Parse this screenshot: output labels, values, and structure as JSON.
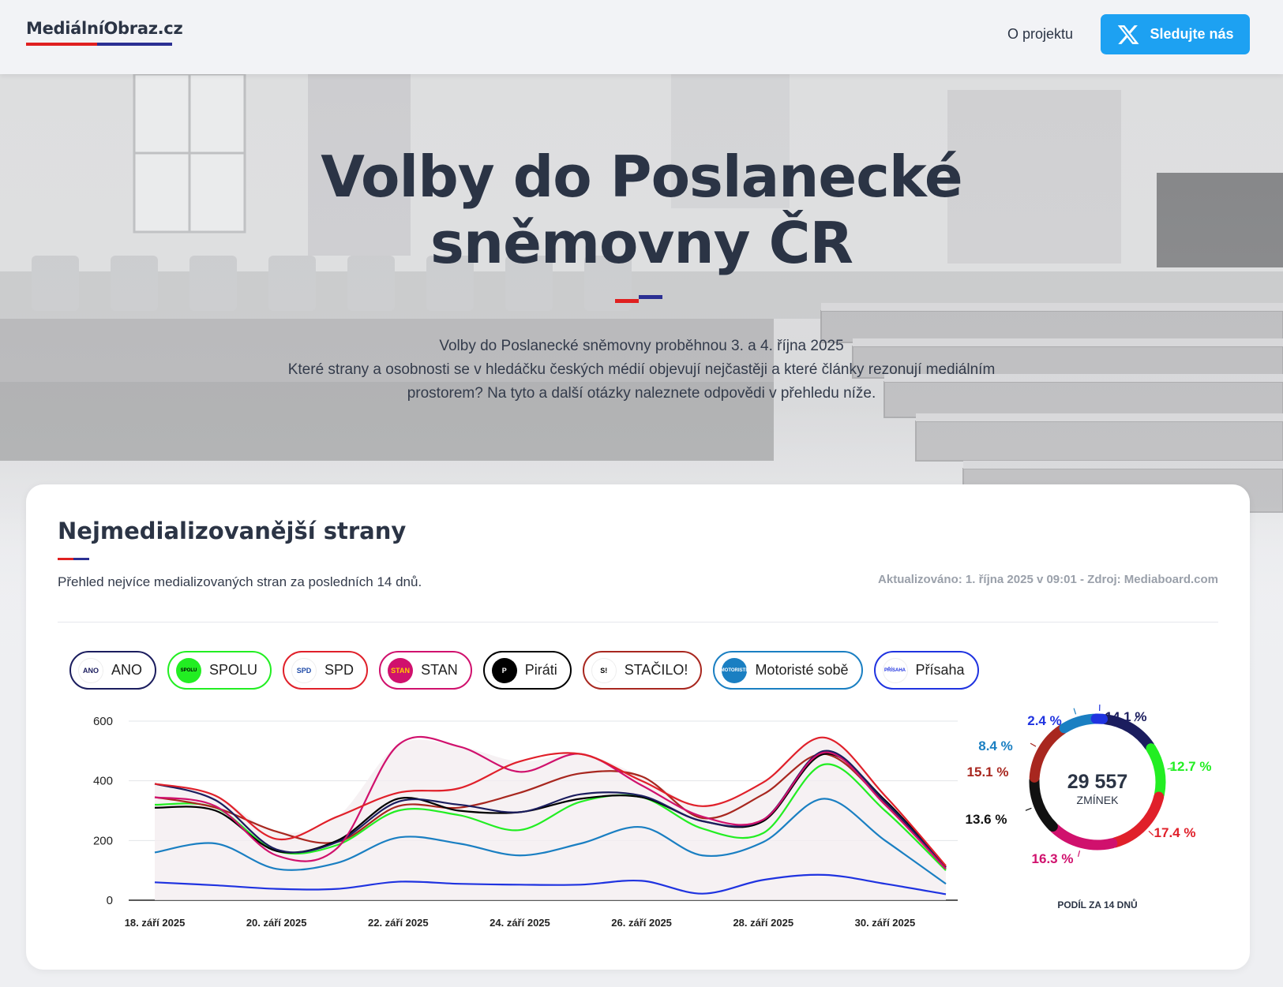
{
  "header": {
    "logo": "MediálníObraz.cz",
    "about_link": "O projektu",
    "follow_label": "Sledujte nás"
  },
  "hero": {
    "title_line1": "Volby do Poslanecké",
    "title_line2": "sněmovny ČR",
    "text_line1": "Volby do Poslanecké sněmovny proběhnou 3. a 4. října 2025",
    "text_line2": "Které strany a osobnosti se v hledáčku českých médií objevují nejčastěji a které články rezonují mediálním",
    "text_line3": "prostorem? Na tyto a další otázky naleznete odpovědi v přehledu níže."
  },
  "section": {
    "title": "Nejmedializovanější strany",
    "subtitle": "Přehled nejvíce medializovaných stran za posledních 14 dnů.",
    "meta": "Aktualizováno: 1. října 2025 v 09:01 - Zdroj: Mediaboard.com"
  },
  "parties": [
    {
      "name": "ANO",
      "color": "#1b1d5e",
      "logo_text": "ANO",
      "logo_bg": "#ffffff",
      "logo_fg": "#1b1d5e"
    },
    {
      "name": "SPOLU",
      "color": "#22ee22",
      "logo_text": "SPOLU",
      "logo_bg": "#22ee22",
      "logo_fg": "#000000"
    },
    {
      "name": "SPD",
      "color": "#e0202a",
      "logo_text": "SPD",
      "logo_bg": "#ffffff",
      "logo_fg": "#1f4ba8"
    },
    {
      "name": "STAN",
      "color": "#d0116d",
      "logo_text": "STAN",
      "logo_bg": "#d0116d",
      "logo_fg": "#ffcc00"
    },
    {
      "name": "Piráti",
      "color": "#000000",
      "logo_text": "P",
      "logo_bg": "#000000",
      "logo_fg": "#ffffff"
    },
    {
      "name": "STAČILO!",
      "color": "#a8271f",
      "logo_text": "S!",
      "logo_bg": "#ffffff",
      "logo_fg": "#000000"
    },
    {
      "name": "Motoristé sobě",
      "color": "#1a7fc2",
      "logo_text": "MOTORISTÉ",
      "logo_bg": "#1a7fc2",
      "logo_fg": "#ffffff"
    },
    {
      "name": "Přísaha",
      "color": "#1f33e0",
      "logo_text": "PŘÍSAHA",
      "logo_bg": "#ffffff",
      "logo_fg": "#1f33e0"
    }
  ],
  "chart_data": {
    "type": "line",
    "x": [
      "18. září 2025",
      "19. září 2025",
      "20. září 2025",
      "21. září 2025",
      "22. září 2025",
      "23. září 2025",
      "24. září 2025",
      "25. září 2025",
      "26. září 2025",
      "27. září 2025",
      "28. září 2025",
      "29. září 2025",
      "30. září 2025",
      "1. října 2025"
    ],
    "x_tick_labels": [
      "18. září 2025",
      "20. září 2025",
      "22. září 2025",
      "24. září 2025",
      "26. září 2025",
      "28. září 2025",
      "30. září 2025"
    ],
    "ylim": [
      0,
      600
    ],
    "y_ticks": [
      0,
      200,
      400,
      600
    ],
    "grid": true,
    "series": [
      {
        "name": "ANO",
        "color": "#1b1d5e",
        "values": [
          390,
          335,
          170,
          195,
          330,
          320,
          295,
          355,
          350,
          265,
          270,
          500,
          330,
          110
        ]
      },
      {
        "name": "SPOLU",
        "color": "#22ee22",
        "values": [
          320,
          310,
          165,
          185,
          300,
          285,
          235,
          330,
          345,
          240,
          225,
          455,
          300,
          100
        ]
      },
      {
        "name": "SPD",
        "color": "#e0202a",
        "values": [
          390,
          350,
          205,
          280,
          360,
          375,
          465,
          490,
          400,
          315,
          395,
          545,
          350,
          115
        ]
      },
      {
        "name": "STAN",
        "color": "#d0116d",
        "values": [
          345,
          315,
          150,
          175,
          520,
          515,
          430,
          490,
          385,
          280,
          270,
          495,
          320,
          105
        ]
      },
      {
        "name": "Piráti",
        "color": "#000000",
        "values": [
          310,
          300,
          165,
          200,
          340,
          300,
          295,
          340,
          345,
          265,
          265,
          490,
          335,
          110
        ]
      },
      {
        "name": "STAČILO!",
        "color": "#a8271f",
        "values": [
          345,
          310,
          230,
          195,
          315,
          310,
          360,
          425,
          415,
          275,
          355,
          490,
          325,
          105
        ]
      },
      {
        "name": "Motoristé sobě",
        "color": "#1a7fc2",
        "values": [
          160,
          190,
          105,
          125,
          210,
          190,
          150,
          190,
          245,
          150,
          195,
          340,
          200,
          55
        ]
      },
      {
        "name": "Přísaha",
        "color": "#1f33e0",
        "values": [
          60,
          50,
          38,
          38,
          62,
          55,
          52,
          52,
          65,
          22,
          68,
          85,
          55,
          20
        ]
      }
    ]
  },
  "donut": {
    "total": "29 557",
    "total_label": "ZMÍNEK",
    "caption": "PODÍL ZA 14 DNŮ",
    "slices": [
      {
        "party": "ANO",
        "pct": 14.1,
        "label": "14.1 %",
        "color": "#1b1d5e"
      },
      {
        "party": "SPOLU",
        "pct": 12.7,
        "label": "12.7 %",
        "color": "#22ee22"
      },
      {
        "party": "SPD",
        "pct": 17.4,
        "label": "17.4 %",
        "color": "#e0202a"
      },
      {
        "party": "STAN",
        "pct": 16.3,
        "label": "16.3 %",
        "color": "#d0116d"
      },
      {
        "party": "Piráti",
        "pct": 13.6,
        "label": "13.6 %",
        "color": "#111111"
      },
      {
        "party": "STAČILO!",
        "pct": 15.1,
        "label": "15.1 %",
        "color": "#a8271f"
      },
      {
        "party": "Motoristé sobě",
        "pct": 8.4,
        "label": "8.4 %",
        "color": "#1a7fc2"
      },
      {
        "party": "Přísaha",
        "pct": 2.4,
        "label": "2.4 %",
        "color": "#1f33e0"
      }
    ]
  }
}
